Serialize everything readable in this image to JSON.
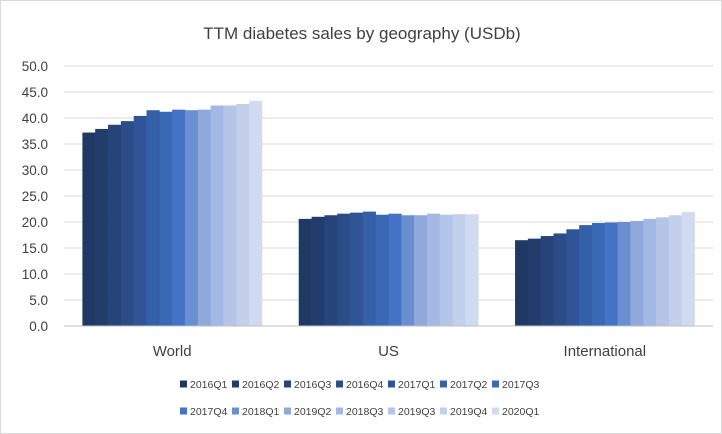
{
  "chart_data": {
    "type": "bar",
    "title": "TTM diabetes sales by geography (USDb)",
    "xlabel": "",
    "ylabel": "",
    "ylim": [
      0,
      50
    ],
    "yticks": [
      "0.0",
      "5.0",
      "10.0",
      "15.0",
      "20.0",
      "25.0",
      "30.0",
      "35.0",
      "40.0",
      "45.0",
      "50.0"
    ],
    "grid": true,
    "legend_position": "bottom",
    "categories": [
      "World",
      "US",
      "International"
    ],
    "series": [
      {
        "name": "2016Q1",
        "color": "#203864",
        "values": [
          37.2,
          20.6,
          16.5
        ]
      },
      {
        "name": "2016Q2",
        "color": "#223d6c",
        "values": [
          37.9,
          21.0,
          16.8
        ]
      },
      {
        "name": "2016Q3",
        "color": "#264479",
        "values": [
          38.7,
          21.3,
          17.3
        ]
      },
      {
        "name": "2016Q4",
        "color": "#2a4d88",
        "values": [
          39.4,
          21.6,
          17.8
        ]
      },
      {
        "name": "2017Q1",
        "color": "#2f5597",
        "values": [
          40.4,
          21.8,
          18.6
        ]
      },
      {
        "name": "2017Q2",
        "color": "#3460a8",
        "values": [
          41.5,
          22.0,
          19.4
        ]
      },
      {
        "name": "2017Q3",
        "color": "#3968b5",
        "values": [
          41.2,
          21.4,
          19.8
        ]
      },
      {
        "name": "2017Q4",
        "color": "#4472c4",
        "values": [
          41.6,
          21.6,
          19.9
        ]
      },
      {
        "name": "2018Q1",
        "color": "#6a8fd1",
        "values": [
          41.5,
          21.3,
          20.0
        ]
      },
      {
        "name": "2019Q2",
        "color": "#8fa9dc",
        "values": [
          41.6,
          21.3,
          20.2
        ]
      },
      {
        "name": "2018Q3",
        "color": "#a3b8e2",
        "values": [
          42.4,
          21.6,
          20.6
        ]
      },
      {
        "name": "2019Q3",
        "color": "#b4c5e7",
        "values": [
          42.4,
          21.4,
          20.9
        ]
      },
      {
        "name": "2019Q4",
        "color": "#c3d0ec",
        "values": [
          42.7,
          21.5,
          21.3
        ]
      },
      {
        "name": "2020Q1",
        "color": "#d0daf0",
        "values": [
          43.3,
          21.5,
          21.9
        ]
      }
    ]
  }
}
